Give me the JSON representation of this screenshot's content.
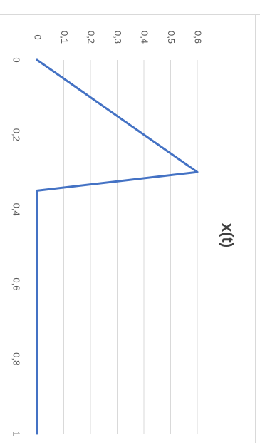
{
  "chart_data": {
    "type": "line",
    "title": "x(t)",
    "xlabel": "",
    "ylabel": "",
    "x_ticks": [
      "0",
      "0,2",
      "0,4",
      "0,6",
      "0,8",
      "1"
    ],
    "y_ticks": [
      "0",
      "0,1",
      "0,2",
      "0,3",
      "0,4",
      "0,5",
      "0,6"
    ],
    "xlim": [
      0,
      1
    ],
    "ylim": [
      0,
      0.6
    ],
    "grid": true,
    "orientation": "rotated-90-clockwise",
    "series": [
      {
        "color": "#4472c4",
        "x": [
          0,
          0.3,
          0.35,
          1
        ],
        "y": [
          0,
          0.6,
          0,
          0
        ]
      }
    ]
  },
  "colors": {
    "line": "#4472c4",
    "grid": "#d9d9d9",
    "text": "#595959"
  }
}
